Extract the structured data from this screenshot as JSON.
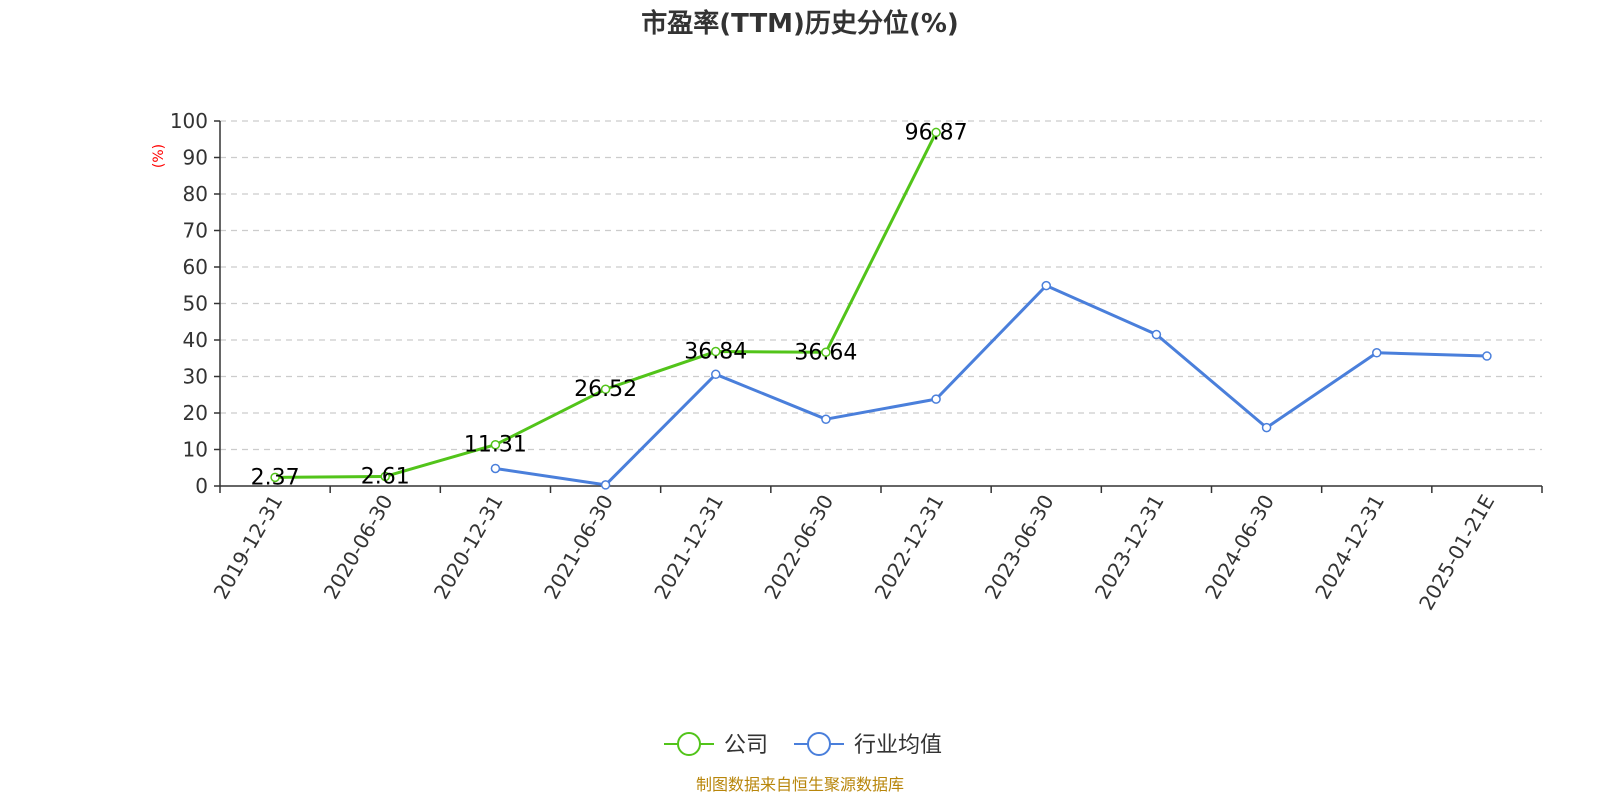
{
  "chart_data": {
    "type": "line",
    "title": "市盈率(TTM)历史分位(%)",
    "ylabel": "(%)",
    "ylim": [
      0,
      100
    ],
    "yticks": [
      0,
      10,
      20,
      30,
      40,
      50,
      60,
      70,
      80,
      90,
      100
    ],
    "categories": [
      "2019-12-31",
      "2020-06-30",
      "2020-12-31",
      "2021-06-30",
      "2021-12-31",
      "2022-06-30",
      "2022-12-31",
      "2023-06-30",
      "2023-12-31",
      "2024-06-30",
      "2024-12-31",
      "2025-01-21E"
    ],
    "grid": true,
    "legend_position": "bottom",
    "series": [
      {
        "name": "公司",
        "color": "#52c41a",
        "values": [
          2.37,
          2.61,
          11.31,
          26.52,
          36.84,
          36.64,
          96.87,
          null,
          null,
          null,
          null,
          null
        ],
        "labels": [
          "2.37",
          "2.61",
          "11.31",
          "26.52",
          "36.84",
          "36.64",
          "96.87",
          null,
          null,
          null,
          null,
          null
        ]
      },
      {
        "name": "行业均值",
        "color": "#4a7fdb",
        "values": [
          null,
          null,
          4.8,
          0.3,
          30.6,
          18.3,
          23.8,
          54.9,
          41.5,
          16.0,
          36.5,
          35.6
        ],
        "labels": null
      }
    ],
    "source": "制图数据来自恒生聚源数据库"
  }
}
